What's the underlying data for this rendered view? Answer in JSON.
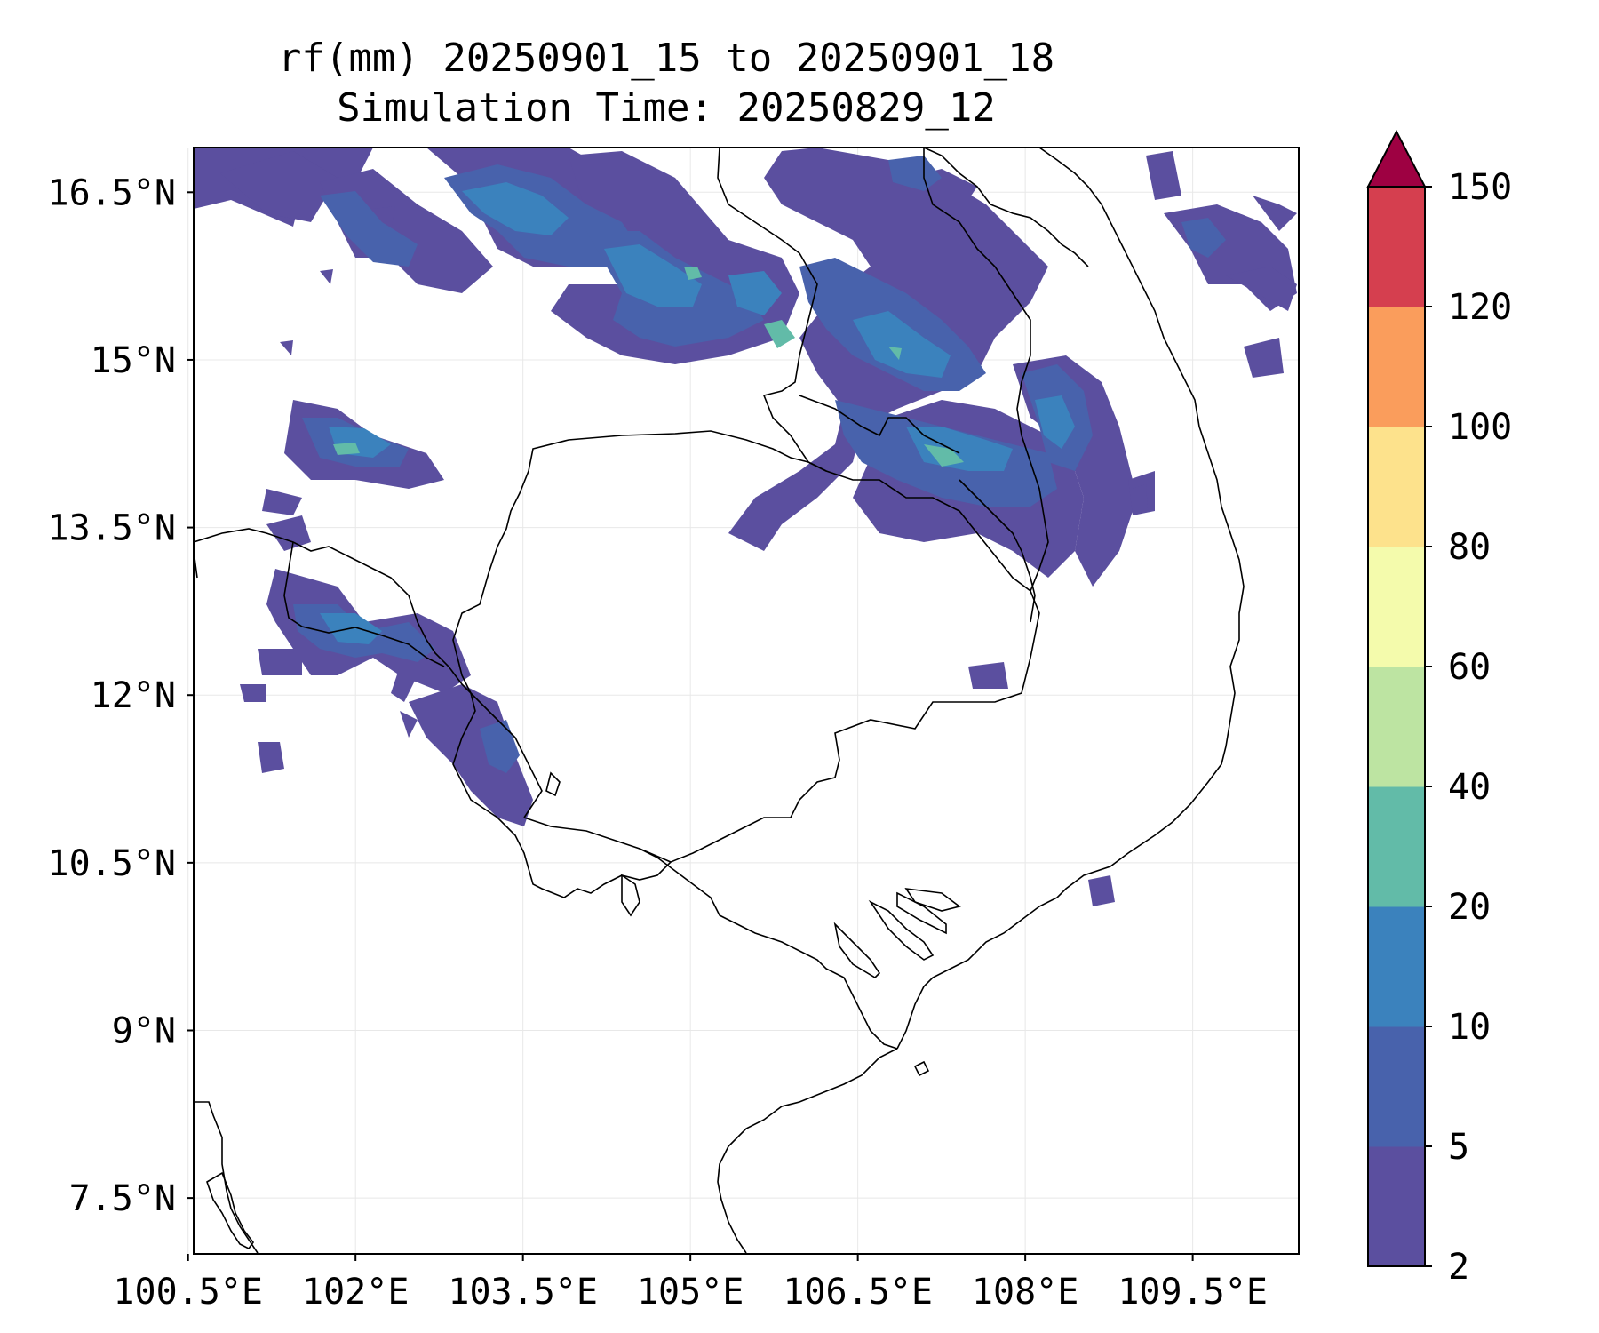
{
  "title": {
    "line1": "rf(mm) 20250901_15 to 20250901_18",
    "line2": "Simulation Time: 20250829_12"
  },
  "axes": {
    "lon_ticks": [
      "100.5°E",
      "102°E",
      "103.5°E",
      "105°E",
      "106.5°E",
      "108°E",
      "109.5°E"
    ],
    "lat_ticks": [
      "16.5°N",
      "15°N",
      "13.5°N",
      "12°N",
      "10.5°N",
      "9°N",
      "7.5°N"
    ],
    "lon_values": [
      100.5,
      102,
      103.5,
      105,
      106.5,
      108,
      109.5
    ],
    "lat_values": [
      16.5,
      15,
      13.5,
      12,
      10.5,
      9,
      7.5
    ],
    "lon_range": [
      100.55,
      110.45
    ],
    "lat_range": [
      7.0,
      16.9
    ],
    "grid": true
  },
  "colorbar": {
    "labels": [
      "2",
      "5",
      "10",
      "20",
      "40",
      "60",
      "80",
      "100",
      "120",
      "150"
    ],
    "colors": [
      "#5b4f9f",
      "#4862ac",
      "#3b82bd",
      "#62bba8",
      "#bde4a2",
      "#f4fbac",
      "#fde28c",
      "#fa9d5c",
      "#d53f4f"
    ],
    "extend_color": "#9e0142"
  },
  "rain_colors": {
    "c2_5": "#5b4f9f",
    "c5_10": "#4862ac",
    "c10_20": "#3b82bd",
    "c20_40": "#62bba8"
  }
}
